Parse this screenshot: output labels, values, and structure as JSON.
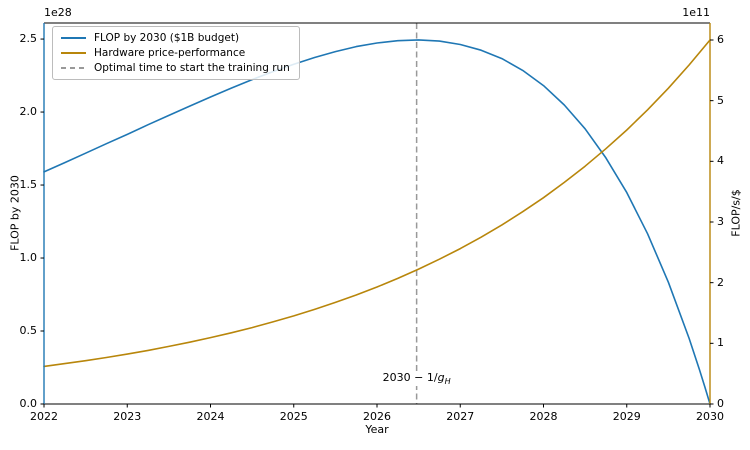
{
  "chart_data": {
    "type": "line",
    "title": "",
    "xlabel": "Year",
    "ylabel_left": "FLOP by 2030",
    "ylabel_right": "FLOP/s/$",
    "offset_left": "1e28",
    "offset_right": "1e11",
    "grid": false,
    "legend_position": "upper left",
    "xlim": [
      2022,
      2030
    ],
    "ylim_left": [
      0,
      2.61
    ],
    "ylim_right": [
      0,
      6.28
    ],
    "x_ticks": [
      {
        "v": 2022,
        "label": "2022"
      },
      {
        "v": 2023,
        "label": "2023"
      },
      {
        "v": 2024,
        "label": "2024"
      },
      {
        "v": 2025,
        "label": "2025"
      },
      {
        "v": 2026,
        "label": "2026"
      },
      {
        "v": 2027,
        "label": "2027"
      },
      {
        "v": 2028,
        "label": "2028"
      },
      {
        "v": 2029,
        "label": "2029"
      },
      {
        "v": 2030,
        "label": "2030"
      }
    ],
    "y_ticks_left": [
      {
        "v": 0.0,
        "label": "0.0"
      },
      {
        "v": 0.5,
        "label": "0.5"
      },
      {
        "v": 1.0,
        "label": "1.0"
      },
      {
        "v": 1.5,
        "label": "1.5"
      },
      {
        "v": 2.0,
        "label": "2.0"
      },
      {
        "v": 2.5,
        "label": "2.5"
      }
    ],
    "y_ticks_right": [
      {
        "v": 0,
        "label": "0"
      },
      {
        "v": 1,
        "label": "1"
      },
      {
        "v": 2,
        "label": "2"
      },
      {
        "v": 3,
        "label": "3"
      },
      {
        "v": 4,
        "label": "4"
      },
      {
        "v": 5,
        "label": "5"
      },
      {
        "v": 6,
        "label": "6"
      }
    ],
    "series": [
      {
        "name": "FLOP by 2030 ($1B budget)",
        "axis": "left",
        "units": "1e28 FLOP",
        "color": "#1f77b4",
        "x": [
          2022,
          2022.25,
          2022.5,
          2022.75,
          2023,
          2023.25,
          2023.5,
          2023.75,
          2024,
          2024.25,
          2024.5,
          2024.75,
          2025,
          2025.25,
          2025.5,
          2025.75,
          2026,
          2026.25,
          2026.5,
          2026.75,
          2027,
          2027.25,
          2027.5,
          2027.75,
          2028,
          2028.25,
          2028.5,
          2028.75,
          2029,
          2029.25,
          2029.5,
          2029.75,
          2029.875,
          2029.9375,
          2030
        ],
        "y": [
          1.59,
          1.654,
          1.718,
          1.783,
          1.847,
          1.913,
          1.977,
          2.041,
          2.103,
          2.164,
          2.222,
          2.277,
          2.328,
          2.374,
          2.414,
          2.448,
          2.473,
          2.489,
          2.494,
          2.486,
          2.463,
          2.424,
          2.366,
          2.285,
          2.181,
          2.048,
          1.885,
          1.686,
          1.448,
          1.166,
          0.834,
          0.448,
          0.232,
          0.118,
          0
        ]
      },
      {
        "name": "Hardware price-performance",
        "axis": "right",
        "units": "1e11 FLOP/s/$",
        "color": "#b8860b",
        "x": [
          2022,
          2022.25,
          2022.5,
          2022.75,
          2023,
          2023.25,
          2023.5,
          2023.75,
          2024,
          2024.25,
          2024.5,
          2024.75,
          2025,
          2025.25,
          2025.5,
          2025.75,
          2026,
          2026.25,
          2026.5,
          2026.75,
          2027,
          2027.25,
          2027.5,
          2027.75,
          2028,
          2028.25,
          2028.5,
          2028.75,
          2029,
          2029.25,
          2029.5,
          2029.75,
          2030
        ],
        "y": [
          0.62,
          0.666,
          0.714,
          0.767,
          0.823,
          0.884,
          0.949,
          1.019,
          1.094,
          1.174,
          1.26,
          1.353,
          1.452,
          1.559,
          1.674,
          1.797,
          1.929,
          2.07,
          2.223,
          2.386,
          2.561,
          2.75,
          2.952,
          3.169,
          3.401,
          3.652,
          3.92,
          4.208,
          4.517,
          4.849,
          5.206,
          5.589,
          6.0
        ]
      }
    ],
    "vline": {
      "name": "Optimal time to start the training run",
      "x": 2026.476,
      "color": "#999999",
      "dash": true
    },
    "annotation": {
      "prefix": "2030 − 1/",
      "var": "g",
      "sub": "H",
      "x": 2026.476,
      "y_frac": 0.068
    },
    "legend": [
      {
        "label": "FLOP by 2030 ($1B budget)",
        "color": "#1f77b4",
        "dash": false
      },
      {
        "label": "Hardware price-performance",
        "color": "#b8860b",
        "dash": false
      },
      {
        "label": "Optimal time to start the training run",
        "color": "#999999",
        "dash": true
      }
    ]
  }
}
